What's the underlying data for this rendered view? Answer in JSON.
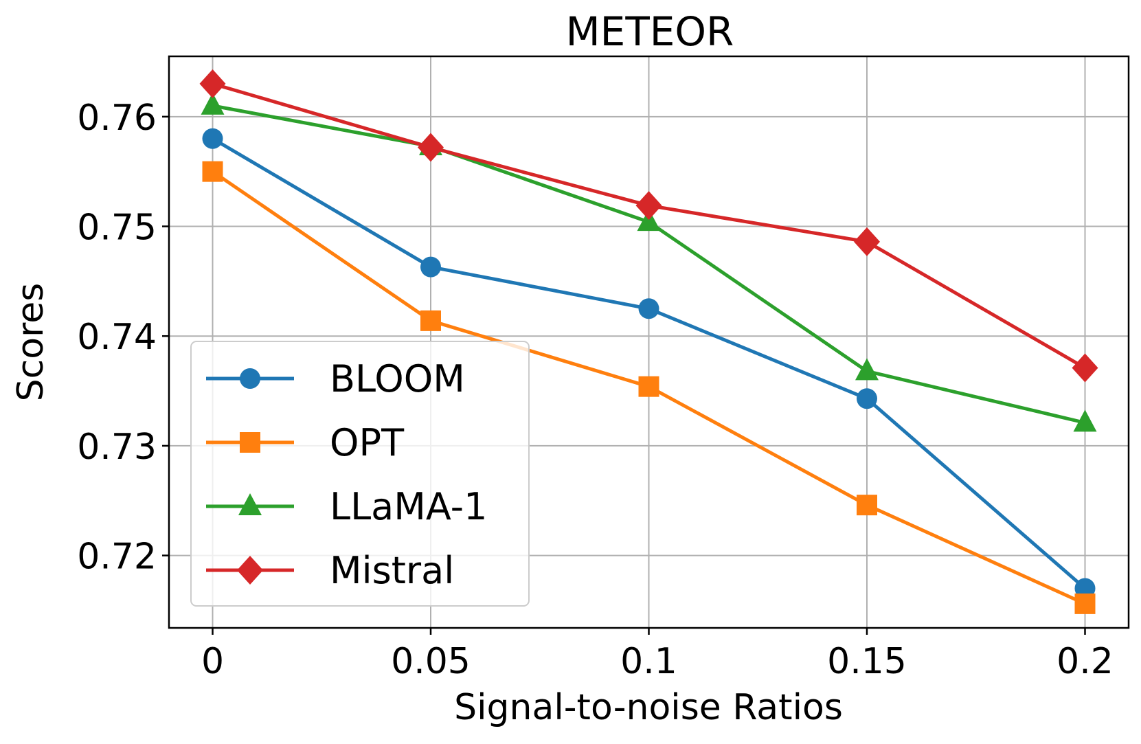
{
  "chart_data": {
    "type": "line",
    "title": "METEOR",
    "xlabel": "Signal-to-noise Ratios",
    "ylabel": "Scores",
    "categories": [
      "0",
      "0.05",
      "0.1",
      "0.15",
      "0.2"
    ],
    "x": [
      0,
      0.05,
      0.1,
      0.15,
      0.2
    ],
    "xlim": [
      -0.01,
      0.21
    ],
    "ylim": [
      0.7134,
      0.7655
    ],
    "yticks": [
      0.72,
      0.73,
      0.74,
      0.75,
      0.76
    ],
    "ytick_labels": [
      "0.72",
      "0.73",
      "0.74",
      "0.75",
      "0.76"
    ],
    "grid": true,
    "legend_position": "lower-left",
    "series": [
      {
        "name": "BLOOM",
        "color": "#1f77b4",
        "marker": "circle",
        "values": [
          0.758,
          0.7463,
          0.7425,
          0.7343,
          0.717
        ]
      },
      {
        "name": "OPT",
        "color": "#ff7f0e",
        "marker": "square",
        "values": [
          0.755,
          0.7414,
          0.7354,
          0.7246,
          0.7156
        ]
      },
      {
        "name": "LLaMA-1",
        "color": "#2ca02c",
        "marker": "triangle",
        "values": [
          0.761,
          0.7573,
          0.7504,
          0.7368,
          0.7321
        ]
      },
      {
        "name": "Mistral",
        "color": "#d62728",
        "marker": "diamond",
        "values": [
          0.763,
          0.7572,
          0.7519,
          0.7486,
          0.7371
        ]
      }
    ]
  }
}
